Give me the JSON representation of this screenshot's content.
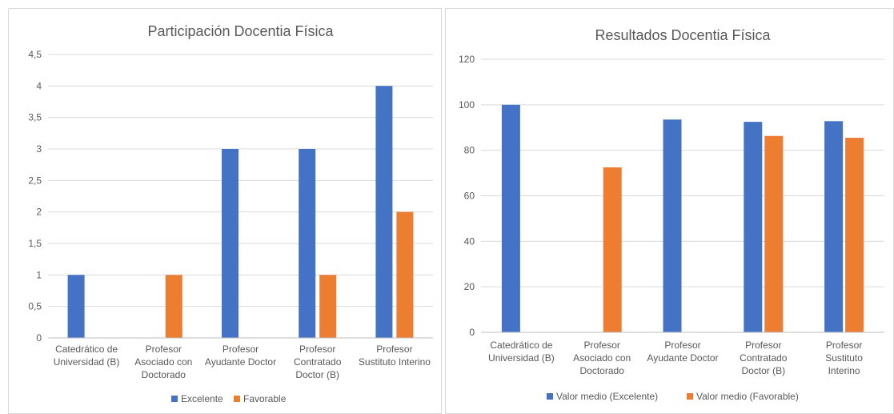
{
  "colors": {
    "excelente": "#4472C4",
    "favorable": "#ED7D31"
  },
  "chart_data": [
    {
      "type": "bar",
      "title": "Participación Docentia Física",
      "categories": [
        [
          "Catedrático de",
          "Universidad (B)"
        ],
        [
          "Profesor",
          "Asociado con",
          "Doctorado"
        ],
        [
          "Profesor",
          "Ayudante Doctor"
        ],
        [
          "Profesor",
          "Contratado",
          "Doctor (B)"
        ],
        [
          "Profesor",
          "Sustituto Interino"
        ]
      ],
      "series": [
        {
          "name": "Excelente",
          "values": [
            1,
            null,
            3,
            3,
            4
          ]
        },
        {
          "name": "Favorable",
          "values": [
            null,
            1,
            null,
            1,
            2
          ]
        }
      ],
      "ylim": [
        0,
        4.5
      ],
      "yticks": [
        "0",
        "0,5",
        "1",
        "1,5",
        "2",
        "2,5",
        "3",
        "3,5",
        "4",
        "4,5"
      ],
      "grid": true,
      "legend": "bottom"
    },
    {
      "type": "bar",
      "title": "Resultados Docentia Física",
      "categories": [
        [
          "Catedrático de",
          "Universidad (B)"
        ],
        [
          "Profesor",
          "Asociado con",
          "Doctorado"
        ],
        [
          "Profesor",
          "Ayudante Doctor"
        ],
        [
          "Profesor",
          "Contratado",
          "Doctor (B)"
        ],
        [
          "Profesor",
          "Sustituto",
          "Interino"
        ]
      ],
      "series": [
        {
          "name": "Valor medio (Excelente)",
          "values": [
            100,
            null,
            93.5,
            92.5,
            92.8
          ]
        },
        {
          "name": "Valor medio (Favorable)",
          "values": [
            null,
            72.5,
            null,
            86.3,
            85.5
          ]
        }
      ],
      "ylim": [
        0,
        120
      ],
      "yticks": [
        "0",
        "20",
        "40",
        "60",
        "80",
        "100",
        "120"
      ],
      "grid": true,
      "legend": "bottom"
    }
  ]
}
